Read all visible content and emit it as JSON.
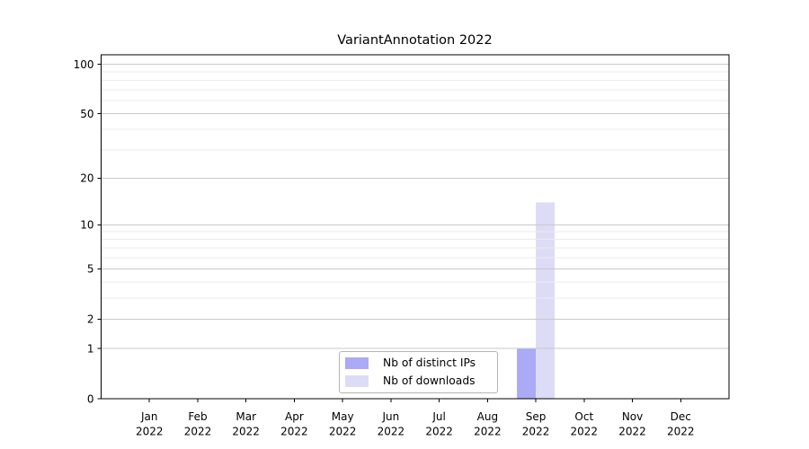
{
  "chart_data": {
    "type": "bar",
    "title": "VariantAnnotation 2022",
    "categories": [
      "Jan 2022",
      "Feb 2022",
      "Mar 2022",
      "Apr 2022",
      "May 2022",
      "Jun 2022",
      "Jul 2022",
      "Aug 2022",
      "Sep 2022",
      "Oct 2022",
      "Nov 2022",
      "Dec 2022"
    ],
    "series": [
      {
        "name": "Nb of distinct IPs",
        "color": "#aaaaf7",
        "values": [
          0,
          0,
          0,
          0,
          0,
          0,
          0,
          0,
          1,
          0,
          0,
          0
        ]
      },
      {
        "name": "Nb of downloads",
        "color": "#dcdcf6",
        "values": [
          0,
          0,
          0,
          0,
          0,
          0,
          0,
          0,
          14,
          0,
          0,
          0
        ]
      }
    ],
    "y_scale": "log1p",
    "ylim": [
      0,
      114
    ],
    "y_ticks": [
      0,
      1,
      2,
      5,
      10,
      20,
      50,
      100
    ],
    "y_minor_gridlines": [
      3,
      4,
      6,
      7,
      8,
      9,
      30,
      40,
      60,
      70,
      80,
      90
    ],
    "grid": "horizontal",
    "legend_position": "lower-center-inside",
    "colors": {
      "major_grid": "#c9c9c9",
      "minor_grid": "#ebebeb",
      "axis": "#000000",
      "text": "#000000",
      "background": "#ffffff"
    }
  }
}
